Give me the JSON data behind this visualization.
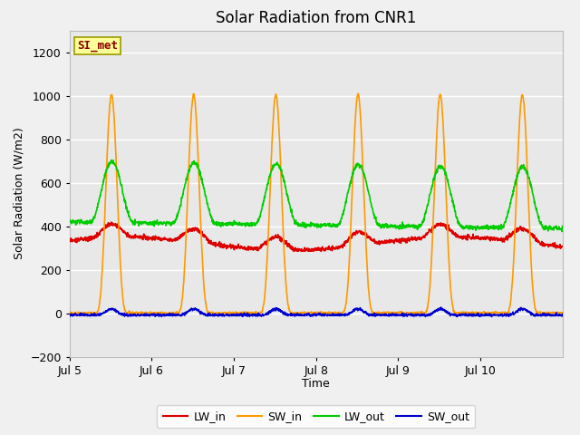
{
  "title": "Solar Radiation from CNR1",
  "xlabel": "Time",
  "ylabel": "Solar Radiation (W/m2)",
  "ylim": [
    -200,
    1300
  ],
  "yticks": [
    -200,
    0,
    200,
    400,
    600,
    800,
    1000,
    1200
  ],
  "x_tick_labels": [
    "Jul 5",
    "Jul 6",
    "Jul 7",
    "Jul 8",
    "Jul 9",
    "Jul 10"
  ],
  "legend_labels": [
    "LW_in",
    "SW_in",
    "LW_out",
    "SW_out"
  ],
  "legend_colors": [
    "#dd0000",
    "#ff9900",
    "#00cc00",
    "#0000cc"
  ],
  "annotation_text": "SI_met",
  "annotation_bg": "#ffff99",
  "annotation_border": "#999900",
  "annotation_text_color": "#880000",
  "fig_bg_color": "#f0f0f0",
  "plot_bg_color": "#e8e8e8",
  "grid_color": "#ffffff",
  "n_days": 6,
  "points_per_day": 288,
  "line_width": 1.2,
  "title_fontsize": 12,
  "label_fontsize": 9,
  "tick_fontsize": 9,
  "legend_fontsize": 9
}
